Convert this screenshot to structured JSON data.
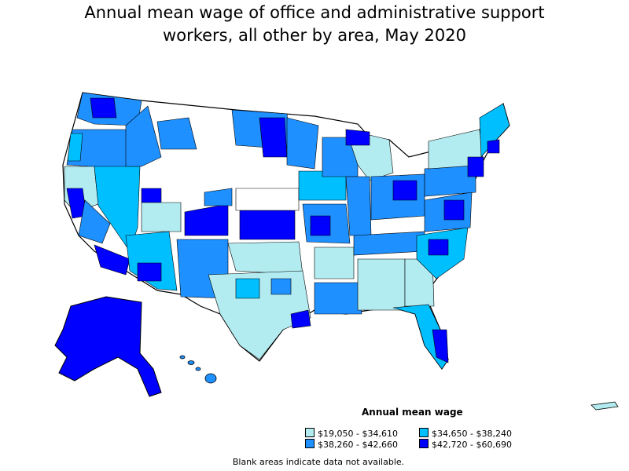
{
  "title_line1": "Annual mean wage of office and administrative support",
  "title_line2": "workers, all other by area, May 2020",
  "legend": {
    "title": "Annual mean wage",
    "items": [
      {
        "label": "$19,050 - $34,610",
        "color": "#b2ebf0"
      },
      {
        "label": "$34,650 - $38,240",
        "color": "#00bfff"
      },
      {
        "label": "$38,260 - $42,660",
        "color": "#1e90ff"
      },
      {
        "label": "$42,720 - $60,690",
        "color": "#0000ff"
      }
    ]
  },
  "note": "Blank areas indicate data not available."
}
